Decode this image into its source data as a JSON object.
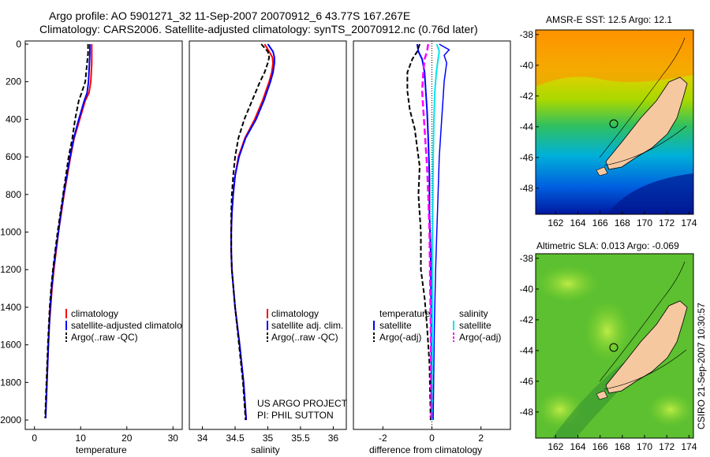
{
  "title": {
    "line1": "Argo profile: AO 5901271_32 11-Sep-2007 20070912_6 43.77S 167.267E",
    "line2": "Climatology: CARS2006. Satellite-adjusted climatology: synTS_20070912.nc (0.76d later)"
  },
  "colors": {
    "climatology": "#ff0000",
    "satellite": "#0000ff",
    "argo": "#000000",
    "salinity_satellite": "#00e5ee",
    "salinity_argo": "#ff00ff",
    "land": "#f5c8a0"
  },
  "chart_data": [
    {
      "type": "line",
      "name": "temperature-profile",
      "xlabel": "temperature",
      "ylabel": "",
      "xlim": [
        -2,
        32
      ],
      "ylim": [
        2050,
        0
      ],
      "xticks": [
        "0",
        "10",
        "20",
        "30"
      ],
      "yticks": [
        "0",
        "200",
        "400",
        "600",
        "800",
        "1000",
        "1200",
        "1400",
        "1600",
        "1800",
        "2000"
      ],
      "series": [
        {
          "name": "climatology",
          "depth": [
            0,
            50,
            100,
            200,
            260,
            300,
            400,
            500,
            600,
            700,
            800,
            900,
            1000,
            1100,
            1200,
            1300,
            1400,
            1500,
            1600,
            1800,
            1990
          ],
          "values": [
            12.4,
            12.4,
            12.4,
            12.2,
            11.8,
            11.0,
            9.8,
            8.6,
            7.8,
            7.1,
            6.4,
            5.8,
            5.2,
            4.7,
            4.2,
            3.8,
            3.5,
            3.2,
            3.0,
            2.7,
            2.4
          ]
        },
        {
          "name": "satellite-adjusted climatology",
          "depth": [
            0,
            50,
            100,
            200,
            260,
            300,
            400,
            500,
            600,
            700,
            800,
            900,
            1000,
            1100,
            1200,
            1300,
            1400,
            1500,
            1600,
            1800,
            1990
          ],
          "values": [
            12.0,
            12.0,
            11.9,
            11.7,
            11.4,
            10.8,
            9.6,
            8.5,
            7.7,
            7.0,
            6.3,
            5.7,
            5.2,
            4.6,
            4.1,
            3.7,
            3.4,
            3.2,
            3.0,
            2.7,
            2.4
          ]
        },
        {
          "name": "Argo(..raw -QC)",
          "depth": [
            0,
            50,
            100,
            200,
            260,
            300,
            400,
            500,
            600,
            700,
            800,
            900,
            1000,
            1100,
            1200,
            1300,
            1400,
            1500,
            1600,
            1800,
            1990
          ],
          "values": [
            11.6,
            11.6,
            11.4,
            11.0,
            10.2,
            9.6,
            8.8,
            8.2,
            7.4,
            6.8,
            6.2,
            5.6,
            5.0,
            4.5,
            4.0,
            3.6,
            3.3,
            3.1,
            2.9,
            2.6,
            2.3
          ]
        }
      ],
      "legend": [
        "climatology",
        "satellite-adjusted climatolo",
        "Argo(..raw -QC)"
      ],
      "legend_placement": "bottom-right"
    },
    {
      "type": "line",
      "name": "salinity-profile",
      "xlabel": "salinity",
      "xlim": [
        33.8,
        36.2
      ],
      "ylim": [
        2050,
        0
      ],
      "xticks": [
        "34",
        "34.5",
        "35",
        "35.5",
        "36"
      ],
      "series": [
        {
          "name": "climatology",
          "depth": [
            0,
            40,
            70,
            100,
            150,
            200,
            300,
            400,
            500,
            600,
            700,
            800,
            900,
            1000,
            1100,
            1200,
            1400,
            1600,
            1800,
            2000
          ],
          "values": [
            34.95,
            35.02,
            35.07,
            35.08,
            35.06,
            35.02,
            34.92,
            34.8,
            34.65,
            34.55,
            34.5,
            34.47,
            34.45,
            34.44,
            34.44,
            34.45,
            34.5,
            34.57,
            34.63,
            34.67
          ]
        },
        {
          "name": "satellite adj. clim.",
          "depth": [
            0,
            40,
            70,
            100,
            150,
            200,
            300,
            400,
            500,
            600,
            700,
            800,
            900,
            1000,
            1100,
            1200,
            1400,
            1600,
            1800,
            2000
          ],
          "values": [
            35.0,
            35.08,
            35.1,
            35.1,
            35.08,
            35.04,
            34.94,
            34.82,
            34.66,
            34.56,
            34.5,
            34.47,
            34.45,
            34.44,
            34.44,
            34.45,
            34.5,
            34.57,
            34.63,
            34.67
          ]
        },
        {
          "name": "Argo(..raw -QC)",
          "depth": [
            0,
            40,
            70,
            100,
            150,
            200,
            300,
            400,
            500,
            600,
            700,
            800,
            900,
            1000,
            1100,
            1200,
            1400,
            1600,
            1800,
            2000
          ],
          "values": [
            34.9,
            35.0,
            35.02,
            35.0,
            34.95,
            34.88,
            34.76,
            34.64,
            34.55,
            34.5,
            34.47,
            34.45,
            34.44,
            34.44,
            34.44,
            34.45,
            34.5,
            34.56,
            34.62,
            34.66
          ]
        }
      ],
      "legend": [
        "climatology",
        "satellite adj. clim.",
        "Argo(..raw -QC)"
      ],
      "legend_placement": "bottom-right",
      "annotation": [
        "US ARGO PROJECT",
        "PI: PHIL SUTTON"
      ]
    },
    {
      "type": "line",
      "name": "difference-profile",
      "xlabel": "difference from climatology",
      "xlim": [
        -3.2,
        3.2
      ],
      "ylim": [
        2050,
        0
      ],
      "xticks": [
        "-2",
        "0",
        "2"
      ],
      "series": [
        {
          "name": "temperature satellite",
          "depth": [
            0,
            40,
            80,
            150,
            250,
            350,
            500,
            700,
            900,
            1100,
            1400,
            1700,
            2000
          ],
          "values": [
            -0.6,
            -0.55,
            -0.4,
            -0.3,
            -0.25,
            -0.2,
            -0.15,
            -0.1,
            -0.1,
            -0.05,
            -0.03,
            -0.02,
            -0.02
          ]
        },
        {
          "name": "temperature Argo(-adj)",
          "depth": [
            0,
            40,
            80,
            150,
            250,
            350,
            450,
            550,
            650,
            800,
            1000,
            1200,
            1350,
            1500,
            1700,
            2000
          ],
          "values": [
            -0.5,
            -0.6,
            -0.8,
            -1.0,
            -1.0,
            -0.9,
            -0.7,
            -0.6,
            -0.5,
            -0.55,
            -0.45,
            -0.45,
            -0.3,
            -0.2,
            -0.1,
            -0.05
          ]
        },
        {
          "name": "salinity satellite",
          "depth": [
            0,
            40,
            80,
            150,
            250,
            400,
            600,
            800,
            1000,
            1400,
            2000
          ],
          "values": [
            0.2,
            0.3,
            0.25,
            0.18,
            0.12,
            0.08,
            0.05,
            0.04,
            0.03,
            0.02,
            0.01
          ]
        },
        {
          "name": "salinity Argo(-adj)",
          "depth": [
            0,
            40,
            80,
            150,
            250,
            350,
            450,
            550,
            650,
            800,
            1000,
            1200,
            1500,
            2000
          ],
          "values": [
            -0.15,
            -0.2,
            -0.3,
            -0.35,
            -0.4,
            -0.35,
            -0.3,
            -0.25,
            -0.2,
            -0.15,
            -0.1,
            -0.08,
            -0.05,
            -0.02
          ]
        },
        {
          "name": "satellite-blue-outer",
          "depth": [
            0,
            30,
            60,
            100,
            150,
            200,
            300,
            400,
            600,
            800,
            1000,
            1200,
            1500,
            2000
          ],
          "values": [
            0.3,
            0.7,
            0.5,
            0.6,
            0.55,
            0.5,
            0.45,
            0.4,
            0.3,
            0.25,
            0.2,
            0.15,
            0.1,
            0.05
          ]
        }
      ],
      "legend": {
        "temperature": "temperature",
        "salinity": "salinity",
        "items": [
          "satellite",
          "Argo(-adj)",
          "satellite",
          "Argo(-adj)"
        ]
      },
      "legend_placement": "bottom"
    }
  ],
  "maps": {
    "sst": {
      "title": "AMSR-E SST: 12.5 Argo: 12.1"
    },
    "sla": {
      "title": "Altimetric SLA: 0.013 Argo: -0.069"
    },
    "yticks": [
      "-38",
      "-40",
      "-42",
      "-44",
      "-46",
      "-48"
    ],
    "xticks": [
      "162",
      "164",
      "166",
      "168",
      "170",
      "172",
      "174"
    ]
  },
  "timestamp": "CSIRO 21-Sep-2007 10:30:57"
}
